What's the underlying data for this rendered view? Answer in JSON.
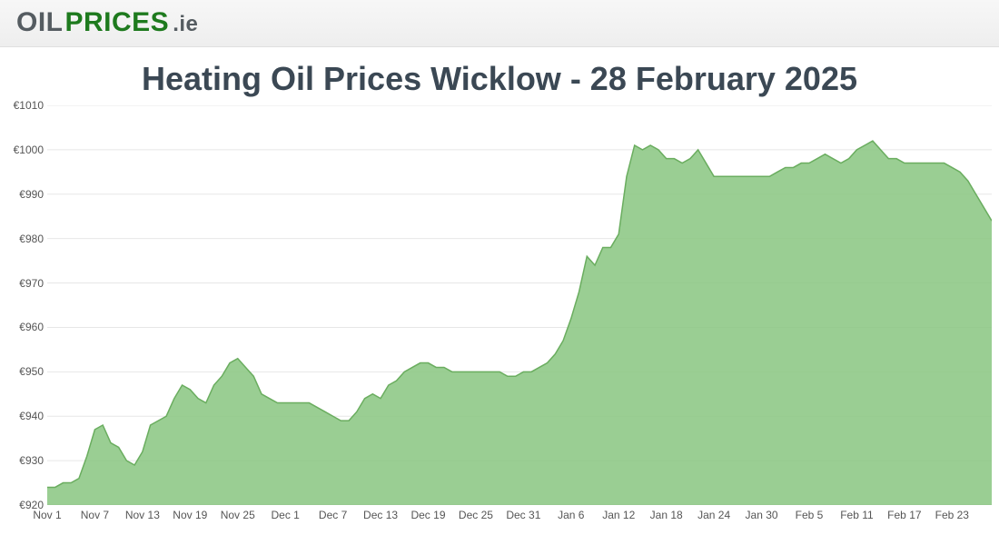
{
  "logo": {
    "part1": "OIL",
    "part2": "PRICES",
    "part3": ".ie",
    "color_oil": "#555c61",
    "color_prices": "#1e7a1e",
    "color_ie": "#555c61"
  },
  "chart": {
    "title": "Heating Oil Prices Wicklow - 28 February 2025",
    "title_color": "#3b4854",
    "title_fontsize": 36,
    "type": "area",
    "ylim": [
      920,
      1010
    ],
    "ytick_step": 10,
    "y_prefix": "€",
    "y_labels": [
      "€920",
      "€930",
      "€940",
      "€950",
      "€960",
      "€970",
      "€980",
      "€990",
      "€1000",
      "€1010"
    ],
    "x_labels": [
      "Nov 1",
      "Nov 7",
      "Nov 13",
      "Nov 19",
      "Nov 25",
      "Dec 1",
      "Dec 7",
      "Dec 13",
      "Dec 19",
      "Dec 25",
      "Dec 31",
      "Jan 6",
      "Jan 12",
      "Jan 18",
      "Jan 24",
      "Jan 30",
      "Feb 5",
      "Feb 11",
      "Feb 17",
      "Feb 23"
    ],
    "x_label_interval": 6,
    "fill_color": "#88c580",
    "fill_opacity": 0.85,
    "line_color": "#6aad5f",
    "line_width": 1.5,
    "grid_color": "#e7e7e7",
    "axis_color": "#cccccc",
    "tick_label_color": "#555555",
    "tick_label_fontsize": 12,
    "background_color": "#ffffff",
    "values": [
      924,
      924,
      925,
      925,
      926,
      931,
      937,
      938,
      934,
      933,
      930,
      929,
      932,
      938,
      939,
      940,
      944,
      947,
      946,
      944,
      943,
      947,
      949,
      952,
      953,
      951,
      949,
      945,
      944,
      943,
      943,
      943,
      943,
      943,
      942,
      941,
      940,
      939,
      939,
      941,
      944,
      945,
      944,
      947,
      948,
      950,
      951,
      952,
      952,
      951,
      951,
      950,
      950,
      950,
      950,
      950,
      950,
      950,
      949,
      949,
      950,
      950,
      951,
      952,
      954,
      957,
      962,
      968,
      976,
      974,
      978,
      978,
      981,
      994,
      1001,
      1000,
      1001,
      1000,
      998,
      998,
      997,
      998,
      1000,
      997,
      994,
      994,
      994,
      994,
      994,
      994,
      994,
      994,
      995,
      996,
      996,
      997,
      997,
      998,
      999,
      998,
      997,
      998,
      1000,
      1001,
      1002,
      1000,
      998,
      998,
      997,
      997,
      997,
      997,
      997,
      997,
      996,
      995,
      993,
      990,
      987,
      984
    ]
  }
}
